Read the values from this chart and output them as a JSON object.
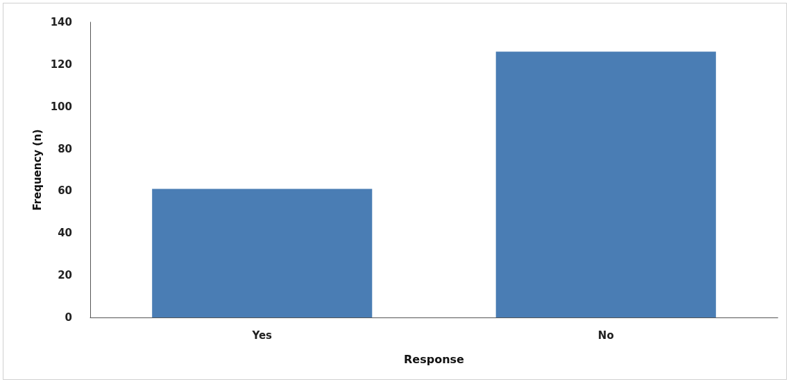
{
  "chart_data": {
    "type": "bar",
    "xlabel": "Response",
    "ylabel": "Frequency (n)",
    "categories": [
      "Yes",
      "No"
    ],
    "values": [
      61,
      126
    ],
    "color": "#4a7db4",
    "ylim": [
      0,
      140
    ],
    "yticks": [
      0,
      20,
      40,
      60,
      80,
      100,
      120,
      140
    ],
    "grid": false
  }
}
